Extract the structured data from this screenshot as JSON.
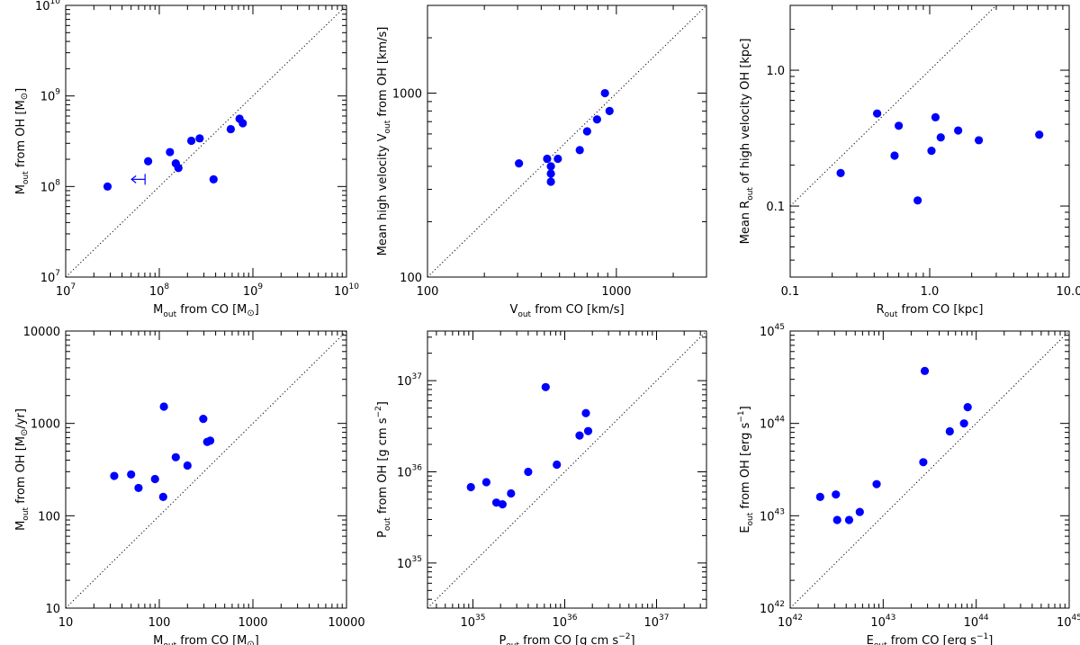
{
  "colors": {
    "points": "#0000ff",
    "axes": "#000000",
    "background": "#ffffff"
  },
  "chart_data": [
    {
      "type": "scatter",
      "scale": "log",
      "title": "",
      "xlabel": {
        "pre": "",
        "base": "M",
        "sub": "out",
        "mid": " from CO [M",
        "sun": true,
        "post": "]"
      },
      "ylabel": {
        "pre": "",
        "base": "M",
        "sub": "out",
        "mid": " from OH [M",
        "sun": true,
        "post": "]"
      },
      "xlim": [
        10000000.0,
        10000000000.0
      ],
      "ylim": [
        10000000.0,
        10000000000.0
      ],
      "xticks": [
        {
          "v": 10000000.0,
          "b": "10",
          "e": "7"
        },
        {
          "v": 100000000.0,
          "b": "10",
          "e": "8"
        },
        {
          "v": 1000000000.0,
          "b": "10",
          "e": "9"
        },
        {
          "v": 10000000000.0,
          "b": "10",
          "e": "10"
        }
      ],
      "yticks": [
        {
          "v": 10000000.0,
          "b": "10",
          "e": "7"
        },
        {
          "v": 100000000.0,
          "b": "10",
          "e": "8"
        },
        {
          "v": 1000000000.0,
          "b": "10",
          "e": "9"
        },
        {
          "v": 10000000000.0,
          "b": "10",
          "e": "10"
        }
      ],
      "x": [
        28000000.0,
        76000000.0,
        130000000.0,
        150000000.0,
        160000000.0,
        220000000.0,
        270000000.0,
        380000000.0,
        580000000.0,
        720000000.0,
        780000000.0
      ],
      "y": [
        100000000.0,
        190000000.0,
        240000000.0,
        180000000.0,
        160000000.0,
        320000000.0,
        340000000.0,
        120000000.0,
        430000000.0,
        560000000.0,
        500000000.0
      ],
      "upper_limits": [
        {
          "x": 59000000.0,
          "y": 120000000.0,
          "direction": "left"
        }
      ],
      "diagonal": "one-to-one"
    },
    {
      "type": "scatter",
      "scale": "log",
      "title": "",
      "xlabel": {
        "pre": "",
        "base": "V",
        "sub": "out",
        "mid": " from CO [km/s]",
        "sun": false,
        "post": ""
      },
      "ylabel": {
        "pre": "Mean high velocity ",
        "base": "V",
        "sub": "out",
        "mid": " from OH [km/s]",
        "sun": false,
        "post": ""
      },
      "xlim": [
        100,
        3000
      ],
      "ylim": [
        100,
        3000
      ],
      "xticks": [
        {
          "v": 100,
          "b": "100",
          "e": ""
        },
        {
          "v": 1000,
          "b": "1000",
          "e": ""
        }
      ],
      "yticks": [
        {
          "v": 100,
          "b": "100",
          "e": ""
        },
        {
          "v": 1000,
          "b": "1000",
          "e": ""
        }
      ],
      "x": [
        305,
        430,
        450,
        450,
        450,
        490,
        640,
        700,
        790,
        870,
        920
      ],
      "y": [
        415,
        440,
        400,
        365,
        330,
        440,
        490,
        620,
        720,
        1000,
        800
      ],
      "upper_limits": [],
      "diagonal": "one-to-one"
    },
    {
      "type": "scatter",
      "scale": "log",
      "title": "",
      "xlabel": {
        "pre": "",
        "base": "R",
        "sub": "out",
        "mid": " from CO [kpc]",
        "sun": false,
        "post": ""
      },
      "ylabel": {
        "pre": "Mean ",
        "base": "R",
        "sub": "out",
        "mid": " of high velocity OH [kpc]",
        "sun": false,
        "post": ""
      },
      "xlim": [
        0.1,
        10
      ],
      "ylim": [
        0.03,
        3
      ],
      "xticks": [
        {
          "v": 0.1,
          "b": "0.1",
          "e": ""
        },
        {
          "v": 1,
          "b": "1.0",
          "e": ""
        },
        {
          "v": 10,
          "b": "10.0",
          "e": ""
        }
      ],
      "yticks": [
        {
          "v": 0.1,
          "b": "0.1",
          "e": ""
        },
        {
          "v": 1,
          "b": "1.0",
          "e": ""
        }
      ],
      "x": [
        0.23,
        0.42,
        0.56,
        0.6,
        0.82,
        1.03,
        1.1,
        1.2,
        1.6,
        2.25,
        6.1
      ],
      "y": [
        0.175,
        0.48,
        0.235,
        0.39,
        0.11,
        0.255,
        0.45,
        0.32,
        0.36,
        0.305,
        0.335
      ],
      "upper_limits": [],
      "diagonal": "one-to-one"
    },
    {
      "type": "scatter",
      "scale": "log",
      "title": "",
      "xlabel": {
        "pre": "",
        "base": "M",
        "dot": true,
        "sub": "out",
        "mid": " from CO [M",
        "sun": true,
        "post": "]"
      },
      "ylabel": {
        "pre": "",
        "base": "M",
        "dot": true,
        "sub": "out",
        "mid": " from OH [M",
        "sun": true,
        "post": "/yr]"
      },
      "xlim": [
        10,
        10000
      ],
      "ylim": [
        10,
        10000
      ],
      "xticks": [
        {
          "v": 10,
          "b": "10",
          "e": ""
        },
        {
          "v": 100,
          "b": "100",
          "e": ""
        },
        {
          "v": 1000,
          "b": "1000",
          "e": ""
        },
        {
          "v": 10000,
          "b": "10000",
          "e": ""
        }
      ],
      "yticks": [
        {
          "v": 10,
          "b": "10",
          "e": ""
        },
        {
          "v": 100,
          "b": "100",
          "e": ""
        },
        {
          "v": 1000,
          "b": "1000",
          "e": ""
        },
        {
          "v": 10000,
          "b": "10000",
          "e": ""
        }
      ],
      "x": [
        33,
        50,
        60,
        90,
        110,
        112,
        150,
        200,
        295,
        325,
        350
      ],
      "y": [
        270,
        280,
        200,
        250,
        160,
        1520,
        430,
        350,
        1120,
        630,
        650
      ],
      "upper_limits": [],
      "diagonal": "one-to-one"
    },
    {
      "type": "scatter",
      "scale": "log",
      "title": "",
      "xlabel": {
        "pre": "",
        "base": "P",
        "dot": true,
        "sub": "out",
        "mid": " from CO [g cm s",
        "sup": "−2",
        "sun": false,
        "post": "]"
      },
      "ylabel": {
        "pre": "",
        "base": "P",
        "dot": true,
        "sub": "out",
        "mid": " from OH [g cm s",
        "sup": "−2",
        "sun": false,
        "post": "]"
      },
      "xlim": [
        3.2e+34,
        3.5e+37
      ],
      "ylim": [
        3.2e+34,
        3.5e+37
      ],
      "xticks": [
        {
          "v": 1e+35,
          "b": "10",
          "e": "35"
        },
        {
          "v": 1e+36,
          "b": "10",
          "e": "36"
        },
        {
          "v": 1e+37,
          "b": "10",
          "e": "37"
        }
      ],
      "yticks": [
        {
          "v": 1e+35,
          "b": "10",
          "e": "35"
        },
        {
          "v": 1e+36,
          "b": "10",
          "e": "36"
        },
        {
          "v": 1e+37,
          "b": "10",
          "e": "37"
        }
      ],
      "x": [
        9.5e+34,
        1.4e+35,
        1.8e+35,
        2.1e+35,
        2.6e+35,
        4e+35,
        6.2e+35,
        8.2e+35,
        1.45e+36,
        1.7e+36,
        1.8e+36
      ],
      "y": [
        6.8e+35,
        7.7e+35,
        4.6e+35,
        4.4e+35,
        5.8e+35,
        1e+36,
        8.5e+36,
        1.2e+36,
        2.5e+36,
        4.4e+36,
        2.8e+36
      ],
      "upper_limits": [],
      "diagonal": "one-to-one"
    },
    {
      "type": "scatter",
      "scale": "log",
      "title": "",
      "xlabel": {
        "pre": "",
        "base": "E",
        "dot": true,
        "sub": "out",
        "mid": " from CO [erg s",
        "sup": "−1",
        "sun": false,
        "post": "]"
      },
      "ylabel": {
        "pre": "",
        "base": "E",
        "dot": true,
        "sub": "out",
        "mid": " from OH [erg s",
        "sup": "−1",
        "sun": false,
        "post": "]"
      },
      "xlim": [
        1e+42,
        1e+45
      ],
      "ylim": [
        1e+42,
        1e+45
      ],
      "xticks": [
        {
          "v": 1e+42,
          "b": "10",
          "e": "42"
        },
        {
          "v": 1e+43,
          "b": "10",
          "e": "43"
        },
        {
          "v": 1e+44,
          "b": "10",
          "e": "44"
        },
        {
          "v": 1e+45,
          "b": "10",
          "e": "45"
        }
      ],
      "yticks": [
        {
          "v": 1e+42,
          "b": "10",
          "e": "42"
        },
        {
          "v": 1e+43,
          "b": "10",
          "e": "43"
        },
        {
          "v": 1e+44,
          "b": "10",
          "e": "44"
        },
        {
          "v": 1e+45,
          "b": "10",
          "e": "45"
        }
      ],
      "x": [
        2.1e+42,
        3.1e+42,
        3.2e+42,
        4.3e+42,
        5.6e+42,
        8.5e+42,
        2.7e+43,
        2.8e+43,
        5.2e+43,
        7.4e+43,
        8.1e+43
      ],
      "y": [
        1.6e+43,
        1.7e+43,
        9e+42,
        9e+42,
        1.1e+43,
        2.2e+43,
        3.8e+43,
        3.7e+44,
        8.2e+43,
        1e+44,
        1.5e+44
      ],
      "upper_limits": [],
      "diagonal": "one-to-one"
    }
  ]
}
